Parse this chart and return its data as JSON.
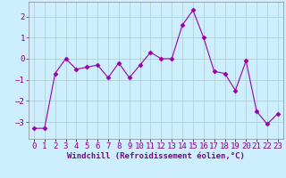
{
  "x": [
    0,
    1,
    2,
    3,
    4,
    5,
    6,
    7,
    8,
    9,
    10,
    11,
    12,
    13,
    14,
    15,
    16,
    17,
    18,
    19,
    20,
    21,
    22,
    23
  ],
  "y": [
    -3.3,
    -3.3,
    -0.7,
    0.0,
    -0.5,
    -0.4,
    -0.3,
    -0.9,
    -0.2,
    -0.9,
    -0.3,
    0.3,
    0.0,
    0.0,
    1.6,
    2.3,
    1.0,
    -0.6,
    -0.7,
    -1.5,
    -0.1,
    -2.5,
    -3.1,
    -2.6
  ],
  "line_color": "#9900aa",
  "marker": "D",
  "marker_size": 2.5,
  "bg_color": "#cceeff",
  "grid_color": "#aacccc",
  "xlabel": "Windchill (Refroidissement éolien,°C)",
  "ylim": [
    -3.8,
    2.7
  ],
  "xlim": [
    -0.5,
    23.5
  ],
  "yticks": [
    -3,
    -2,
    -1,
    0,
    1,
    2
  ],
  "xtick_labels": [
    "0",
    "1",
    "2",
    "3",
    "4",
    "5",
    "6",
    "7",
    "8",
    "9",
    "10",
    "11",
    "12",
    "13",
    "14",
    "15",
    "16",
    "17",
    "18",
    "19",
    "20",
    "21",
    "22",
    "23"
  ],
  "xlabel_fontsize": 6.5,
  "tick_fontsize": 6.5,
  "xlabel_color": "#880088",
  "tick_color": "#880088"
}
